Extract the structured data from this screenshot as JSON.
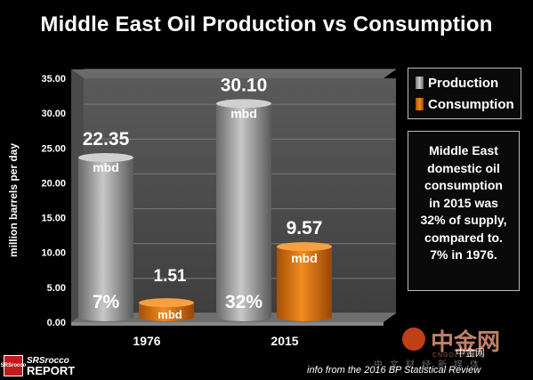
{
  "title": "Middle East Oil Production vs Consumption",
  "legend": {
    "production": "Production",
    "consumption": "Consumption"
  },
  "note": {
    "lines": [
      "Middle East",
      "domestic oil",
      "consumption",
      "in 2015 was",
      "32% of supply,",
      "compared to.",
      "7%  in 1976."
    ]
  },
  "logo": {
    "mark": "SRSrocco",
    "line1": "SRSrocco",
    "line2": "REPORT"
  },
  "source": "info from the 2016 BP Statistical Review",
  "watermark": {
    "cn_big": "中金网",
    "en": "CNGOLD.ORG",
    "cn_small": "中金网",
    "cn_row": "中文财经新媒体"
  },
  "colors": {
    "production": "#9a9a9a",
    "consumption": "#e07a10",
    "background": "#000000"
  },
  "chart_data": {
    "type": "bar",
    "title": "Middle East Oil Production vs Consumption",
    "xlabel": "",
    "ylabel": "million barrels per day",
    "ylim": [
      0,
      35
    ],
    "yticks": [
      "0.00",
      "5.00",
      "10.00",
      "15.00",
      "20.00",
      "25.00",
      "30.00",
      "35.00"
    ],
    "categories": [
      "1976",
      "2015"
    ],
    "legend_position": "right",
    "series": [
      {
        "name": "Production",
        "values": [
          22.35,
          30.1
        ],
        "labels": [
          "22.35",
          "30.10"
        ],
        "unit": "mbd",
        "pct": [
          "",
          ""
        ]
      },
      {
        "name": "Consumption",
        "values": [
          1.51,
          9.57
        ],
        "labels": [
          "1.51",
          "9.57"
        ],
        "unit": "mbd",
        "pct": [
          "7%",
          "32%"
        ]
      }
    ]
  }
}
